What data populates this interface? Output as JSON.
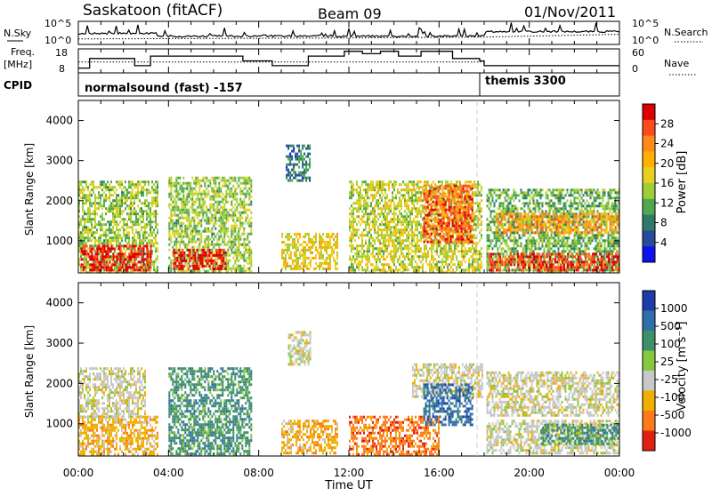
{
  "header": {
    "station": "Saskatoon (fitACF)",
    "beam": "Beam 09",
    "date": "01/Nov/2011"
  },
  "panels": {
    "nsky": {
      "label_top": "N.Sky",
      "ticks_left": [
        "10^5",
        "10^0"
      ],
      "ticks_right": [
        "10^5",
        "10^0"
      ],
      "right_label": "N.Search"
    },
    "freq": {
      "label_top": "Freq.",
      "label_bottom": "[MHz]",
      "ticks_left": [
        "18",
        "8"
      ],
      "ticks_right": [
        "60",
        "0"
      ],
      "right_label": "Nave"
    },
    "cpid": {
      "label": "CPID",
      "mode1": "normalsound (fast) -157",
      "mode2": "themis 3300"
    }
  },
  "power_colorbar": {
    "title": "Power [dB]",
    "ticks": [
      "28",
      "24",
      "20",
      "16",
      "12",
      "8",
      "4"
    ],
    "colors": [
      "#dd0000",
      "#ff4a1a",
      "#ff8a1a",
      "#ffb000",
      "#e8d020",
      "#9fcf38",
      "#4fa84f",
      "#2e7a66",
      "#244c9a",
      "#1010ee"
    ]
  },
  "velocity_colorbar": {
    "title": "Velocity [m s⁻¹]",
    "ticks": [
      "1000",
      "500",
      "100",
      "25",
      "-25",
      "-100",
      "-500",
      "-1000"
    ],
    "colors": [
      "#1c3ca8",
      "#2f6faa",
      "#3f8f6a",
      "#86c840",
      "#c8c8c8",
      "#f0b000",
      "#ff7a1a",
      "#e02010"
    ]
  },
  "chart_data": [
    {
      "type": "heatmap",
      "name": "power",
      "ylabel": "Slant Range [km]",
      "ylim": [
        200,
        4500
      ],
      "yticks": [
        1000,
        2000,
        3000,
        4000
      ],
      "x_ticklabels": [
        "00:00",
        "04:00",
        "08:00",
        "12:00",
        "16:00",
        "20:00",
        "00:00"
      ],
      "xlim_hours": [
        0,
        24
      ],
      "colorbar_ticks": [
        4,
        8,
        12,
        16,
        20,
        24,
        28
      ],
      "colorbar_label": "Power [dB]",
      "echo_regions": [
        {
          "t_start": 0.0,
          "t_end": 3.5,
          "range_min": 200,
          "range_max": 2500,
          "power_db": 12
        },
        {
          "t_start": 0.1,
          "t_end": 3.2,
          "range_min": 300,
          "range_max": 900,
          "power_db": 28
        },
        {
          "t_start": 4.0,
          "t_end": 7.7,
          "range_min": 200,
          "range_max": 2600,
          "power_db": 12
        },
        {
          "t_start": 4.2,
          "t_end": 6.5,
          "range_min": 300,
          "range_max": 800,
          "power_db": 28
        },
        {
          "t_start": 9.2,
          "t_end": 10.3,
          "range_min": 2500,
          "range_max": 3400,
          "power_db": 6
        },
        {
          "t_start": 9.0,
          "t_end": 11.5,
          "range_min": 300,
          "range_max": 1200,
          "power_db": 16
        },
        {
          "t_start": 12.0,
          "t_end": 17.9,
          "range_min": 200,
          "range_max": 2500,
          "power_db": 14
        },
        {
          "t_start": 15.3,
          "t_end": 17.5,
          "range_min": 1000,
          "range_max": 2400,
          "power_db": 24
        },
        {
          "t_start": 18.1,
          "t_end": 24.0,
          "range_min": 200,
          "range_max": 2300,
          "power_db": 10
        },
        {
          "t_start": 18.2,
          "t_end": 24.0,
          "range_min": 300,
          "range_max": 700,
          "power_db": 26
        },
        {
          "t_start": 18.5,
          "t_end": 24.0,
          "range_min": 1200,
          "range_max": 1700,
          "power_db": 20
        }
      ]
    },
    {
      "type": "heatmap",
      "name": "velocity",
      "ylabel": "Slant Range [km]",
      "ylim": [
        200,
        4500
      ],
      "yticks": [
        1000,
        2000,
        3000,
        4000
      ],
      "xlabel": "Time UT",
      "x_ticklabels": [
        "00:00",
        "04:00",
        "08:00",
        "12:00",
        "16:00",
        "20:00",
        "00:00"
      ],
      "xlim_hours": [
        0,
        24
      ],
      "colorbar_ticks": [
        1000,
        500,
        100,
        25,
        -25,
        -100,
        -500,
        -1000
      ],
      "colorbar_label": "Velocity [m s⁻¹]",
      "echo_regions": [
        {
          "t_start": 0.0,
          "t_end": 3.5,
          "range_min": 200,
          "range_max": 1200,
          "velocity": -100
        },
        {
          "t_start": 0.0,
          "t_end": 3.0,
          "range_min": 1200,
          "range_max": 2400,
          "velocity": 0
        },
        {
          "t_start": 4.0,
          "t_end": 7.7,
          "range_min": 200,
          "range_max": 2400,
          "velocity": 100
        },
        {
          "t_start": 9.3,
          "t_end": 10.3,
          "range_min": 2500,
          "range_max": 3300,
          "velocity": 0
        },
        {
          "t_start": 9.0,
          "t_end": 11.5,
          "range_min": 300,
          "range_max": 1100,
          "velocity": -100
        },
        {
          "t_start": 12.0,
          "t_end": 16.0,
          "range_min": 200,
          "range_max": 1200,
          "velocity": -200
        },
        {
          "t_start": 14.8,
          "t_end": 17.9,
          "range_min": 1700,
          "range_max": 2500,
          "velocity": 0
        },
        {
          "t_start": 15.3,
          "t_end": 17.5,
          "range_min": 1000,
          "range_max": 2000,
          "velocity": 500
        },
        {
          "t_start": 18.1,
          "t_end": 24.0,
          "range_min": 1200,
          "range_max": 2300,
          "velocity": 0
        },
        {
          "t_start": 18.1,
          "t_end": 24.0,
          "range_min": 300,
          "range_max": 1100,
          "velocity": 0
        },
        {
          "t_start": 20.5,
          "t_end": 24.0,
          "range_min": 500,
          "range_max": 1000,
          "velocity": 100
        }
      ]
    }
  ]
}
